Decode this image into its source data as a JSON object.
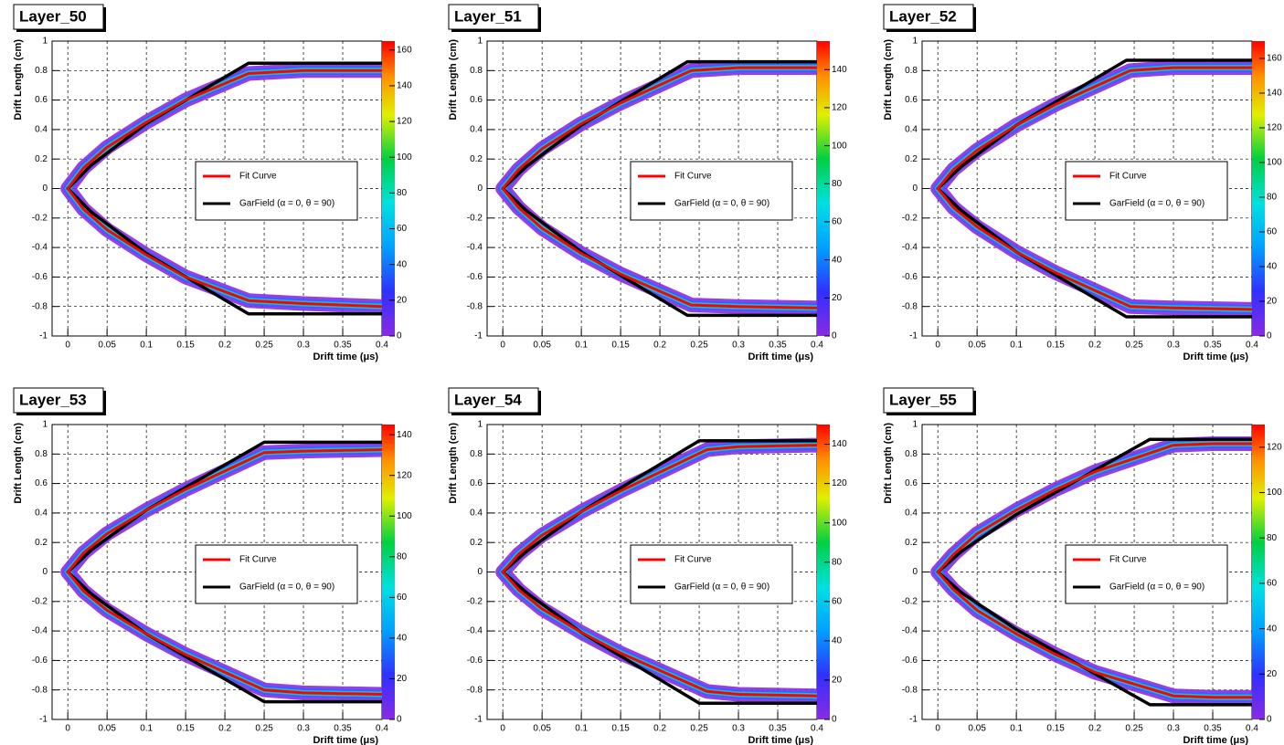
{
  "chart_data": [
    {
      "type": "line",
      "title": "Layer_50",
      "x_label": "Drift time (μs)",
      "y_label": "Drift Length (cm)",
      "xlim": [
        -0.02,
        0.4
      ],
      "xticks": [
        0,
        0.05,
        0.1,
        0.15,
        0.2,
        0.25,
        0.3,
        0.35,
        0.4
      ],
      "ylim": [
        -1,
        1
      ],
      "yticks": [
        -1,
        -0.8,
        -0.6,
        -0.4,
        -0.2,
        0,
        0.2,
        0.4,
        0.6,
        0.8,
        1
      ],
      "zlim": [
        0,
        165
      ],
      "zticks": [
        0,
        20,
        40,
        60,
        80,
        100,
        120,
        140,
        160
      ],
      "grid": true,
      "series": [
        {
          "name": "Fit Curve",
          "color": "#ff0000",
          "x": [
            0.4,
            0.3,
            0.23,
            0.15,
            0.1,
            0.05,
            0.02,
            0,
            0.02,
            0.05,
            0.1,
            0.15,
            0.23,
            0.3,
            0.4
          ],
          "values": [
            0.8,
            0.8,
            0.78,
            0.6,
            0.45,
            0.28,
            0.14,
            0,
            -0.14,
            -0.28,
            -0.45,
            -0.6,
            -0.76,
            -0.78,
            -0.8
          ]
        },
        {
          "name": "GarField (α = 0, θ = 90)",
          "color": "#000000",
          "x": [
            0.4,
            0.23,
            0.1,
            0.03,
            0,
            0.03,
            0.1,
            0.23,
            0.4
          ],
          "values": [
            0.85,
            0.85,
            0.44,
            0.16,
            0,
            -0.16,
            -0.44,
            -0.85,
            -0.85
          ]
        }
      ]
    },
    {
      "type": "line",
      "title": "Layer_51",
      "x_label": "Drift time (μs)",
      "y_label": "Drift Length (cm)",
      "xlim": [
        -0.02,
        0.4
      ],
      "xticks": [
        0,
        0.05,
        0.1,
        0.15,
        0.2,
        0.25,
        0.3,
        0.35,
        0.4
      ],
      "ylim": [
        -1,
        1
      ],
      "yticks": [
        -1,
        -0.8,
        -0.6,
        -0.4,
        -0.2,
        0,
        0.2,
        0.4,
        0.6,
        0.8,
        1
      ],
      "zlim": [
        0,
        155
      ],
      "zticks": [
        0,
        20,
        40,
        60,
        80,
        100,
        120,
        140
      ],
      "grid": true,
      "series": [
        {
          "name": "Fit Curve",
          "color": "#ff0000",
          "x": [
            0.4,
            0.3,
            0.24,
            0.15,
            0.1,
            0.05,
            0.02,
            0,
            0.02,
            0.05,
            0.1,
            0.15,
            0.24,
            0.3,
            0.4
          ],
          "values": [
            0.82,
            0.82,
            0.8,
            0.58,
            0.44,
            0.27,
            0.13,
            0,
            -0.13,
            -0.27,
            -0.44,
            -0.58,
            -0.79,
            -0.8,
            -0.81
          ]
        },
        {
          "name": "GarField (α = 0, θ = 90)",
          "color": "#000000",
          "x": [
            0.4,
            0.235,
            0.1,
            0.03,
            0,
            0.03,
            0.1,
            0.235,
            0.4
          ],
          "values": [
            0.86,
            0.86,
            0.43,
            0.15,
            0,
            -0.15,
            -0.43,
            -0.86,
            -0.86
          ]
        }
      ]
    },
    {
      "type": "line",
      "title": "Layer_52",
      "x_label": "Drift time (μs)",
      "y_label": "Drift Length (cm)",
      "xlim": [
        -0.02,
        0.4
      ],
      "xticks": [
        0,
        0.05,
        0.1,
        0.15,
        0.2,
        0.25,
        0.3,
        0.35,
        0.4
      ],
      "ylim": [
        -1,
        1
      ],
      "yticks": [
        -1,
        -0.8,
        -0.6,
        -0.4,
        -0.2,
        0,
        0.2,
        0.4,
        0.6,
        0.8,
        1
      ],
      "zlim": [
        0,
        170
      ],
      "zticks": [
        0,
        20,
        40,
        60,
        80,
        100,
        120,
        140,
        160
      ],
      "grid": true,
      "series": [
        {
          "name": "Fit Curve",
          "color": "#ff0000",
          "x": [
            0.4,
            0.3,
            0.245,
            0.15,
            0.1,
            0.05,
            0.02,
            0,
            0.02,
            0.05,
            0.1,
            0.15,
            0.245,
            0.3,
            0.4
          ],
          "values": [
            0.82,
            0.82,
            0.8,
            0.57,
            0.43,
            0.26,
            0.13,
            0,
            -0.13,
            -0.26,
            -0.43,
            -0.57,
            -0.8,
            -0.81,
            -0.82
          ]
        },
        {
          "name": "GarField (α = 0, θ = 90)",
          "color": "#000000",
          "x": [
            0.4,
            0.24,
            0.1,
            0.03,
            0,
            0.03,
            0.1,
            0.24,
            0.4
          ],
          "values": [
            0.87,
            0.87,
            0.43,
            0.15,
            0,
            -0.15,
            -0.43,
            -0.87,
            -0.87
          ]
        }
      ]
    },
    {
      "type": "line",
      "title": "Layer_53",
      "x_label": "Drift time (μs)",
      "y_label": "Drift Length (cm)",
      "xlim": [
        -0.02,
        0.4
      ],
      "xticks": [
        0,
        0.05,
        0.1,
        0.15,
        0.2,
        0.25,
        0.3,
        0.35,
        0.4
      ],
      "ylim": [
        -1,
        1
      ],
      "yticks": [
        -1,
        -0.8,
        -0.6,
        -0.4,
        -0.2,
        0,
        0.2,
        0.4,
        0.6,
        0.8,
        1
      ],
      "zlim": [
        0,
        145
      ],
      "zticks": [
        0,
        20,
        40,
        60,
        80,
        100,
        120,
        140
      ],
      "grid": true,
      "series": [
        {
          "name": "Fit Curve",
          "color": "#ff0000",
          "x": [
            0.4,
            0.3,
            0.25,
            0.15,
            0.1,
            0.05,
            0.02,
            0,
            0.02,
            0.05,
            0.1,
            0.15,
            0.25,
            0.3,
            0.4
          ],
          "values": [
            0.83,
            0.82,
            0.81,
            0.56,
            0.42,
            0.26,
            0.13,
            0,
            -0.13,
            -0.26,
            -0.42,
            -0.56,
            -0.8,
            -0.82,
            -0.83
          ]
        },
        {
          "name": "GarField (α = 0, θ = 90)",
          "color": "#000000",
          "x": [
            0.4,
            0.25,
            0.1,
            0.03,
            0,
            0.03,
            0.1,
            0.25,
            0.4
          ],
          "values": [
            0.88,
            0.88,
            0.42,
            0.15,
            0,
            -0.15,
            -0.42,
            -0.88,
            -0.88
          ]
        }
      ]
    },
    {
      "type": "line",
      "title": "Layer_54",
      "x_label": "Drift time (μs)",
      "y_label": "Drift Length (cm)",
      "xlim": [
        -0.02,
        0.4
      ],
      "xticks": [
        0,
        0.05,
        0.1,
        0.15,
        0.2,
        0.25,
        0.3,
        0.35,
        0.4
      ],
      "ylim": [
        -1,
        1
      ],
      "yticks": [
        -1,
        -0.8,
        -0.6,
        -0.4,
        -0.2,
        0,
        0.2,
        0.4,
        0.6,
        0.8,
        1
      ],
      "zlim": [
        0,
        150
      ],
      "zticks": [
        0,
        20,
        40,
        60,
        80,
        100,
        120,
        140
      ],
      "grid": true,
      "series": [
        {
          "name": "Fit Curve",
          "color": "#ff0000",
          "x": [
            0.4,
            0.3,
            0.26,
            0.15,
            0.1,
            0.05,
            0.02,
            0,
            0.02,
            0.05,
            0.1,
            0.15,
            0.26,
            0.3,
            0.4
          ],
          "values": [
            0.86,
            0.85,
            0.83,
            0.55,
            0.41,
            0.25,
            0.12,
            0,
            -0.12,
            -0.25,
            -0.41,
            -0.55,
            -0.81,
            -0.83,
            -0.84
          ]
        },
        {
          "name": "GarField (α = 0, θ = 90)",
          "color": "#000000",
          "x": [
            0.4,
            0.25,
            0.1,
            0.03,
            0,
            0.03,
            0.1,
            0.25,
            0.4
          ],
          "values": [
            0.89,
            0.89,
            0.41,
            0.14,
            0,
            -0.14,
            -0.41,
            -0.89,
            -0.89
          ]
        }
      ]
    },
    {
      "type": "line",
      "title": "Layer_55",
      "x_label": "Drift time (μs)",
      "y_label": "Drift Length (cm)",
      "xlim": [
        -0.02,
        0.4
      ],
      "xticks": [
        0,
        0.05,
        0.1,
        0.15,
        0.2,
        0.25,
        0.3,
        0.35,
        0.4
      ],
      "ylim": [
        -1,
        1
      ],
      "yticks": [
        -1,
        -0.8,
        -0.6,
        -0.4,
        -0.2,
        0,
        0.2,
        0.4,
        0.6,
        0.8,
        1
      ],
      "zlim": [
        0,
        130
      ],
      "zticks": [
        0,
        20,
        40,
        60,
        80,
        100,
        120
      ],
      "grid": true,
      "series": [
        {
          "name": "Fit Curve",
          "color": "#ff0000",
          "x": [
            0.4,
            0.35,
            0.3,
            0.2,
            0.15,
            0.1,
            0.05,
            0.02,
            0,
            0.02,
            0.05,
            0.1,
            0.15,
            0.2,
            0.3,
            0.35,
            0.4
          ],
          "values": [
            0.87,
            0.87,
            0.86,
            0.68,
            0.56,
            0.42,
            0.26,
            0.12,
            0,
            -0.12,
            -0.26,
            -0.42,
            -0.56,
            -0.68,
            -0.84,
            -0.85,
            -0.85
          ]
        },
        {
          "name": "GarField (α = 0, θ = 90)",
          "color": "#000000",
          "x": [
            0.4,
            0.27,
            0.1,
            0.03,
            0,
            0.03,
            0.1,
            0.27,
            0.4
          ],
          "values": [
            0.9,
            0.9,
            0.39,
            0.14,
            0,
            -0.14,
            -0.39,
            -0.9,
            -0.9
          ]
        }
      ]
    }
  ]
}
